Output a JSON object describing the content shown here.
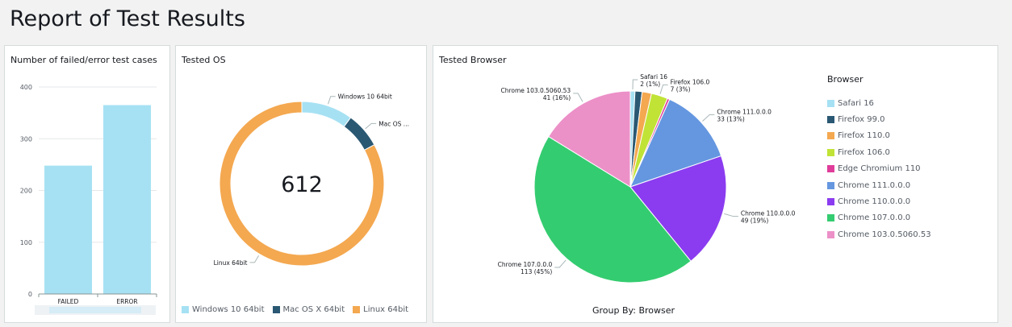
{
  "page": {
    "title": "Report of Test Results"
  },
  "colors": {
    "bar": "#a6e1f3",
    "grid": "#e4e7ea",
    "axis": "#879596"
  },
  "chart_data": [
    {
      "type": "bar",
      "title": "Number of failed/error test cases",
      "categories": [
        "FAILED",
        "ERROR"
      ],
      "values": [
        248,
        365
      ],
      "ylim": [
        0,
        400
      ],
      "yticks": [
        "0",
        "100",
        "200",
        "300",
        "400"
      ],
      "xlabel": "",
      "ylabel": "",
      "grid": true
    },
    {
      "type": "pie",
      "subtype": "donut",
      "title": "Tested OS",
      "center_value": "612",
      "slices": [
        {
          "label": "Windows 10 64bit",
          "callout": "Windows 10 64bit",
          "value": 62,
          "color": "#a6e1f3"
        },
        {
          "label": "Mac OS X 64bit",
          "callout": "Mac OS ...",
          "value": 43,
          "color": "#2a5873"
        },
        {
          "label": "Linux 64bit",
          "callout": "Linux 64bit",
          "value": 507,
          "color": "#f4a850"
        }
      ],
      "legend": "bottom"
    },
    {
      "type": "pie",
      "title": "Tested Browser",
      "legend_title": "Browser",
      "group_by": "Group By: Browser",
      "slices": [
        {
          "label": "Safari 16",
          "name": "Safari 16",
          "pct": "2 (1%)",
          "value": 2,
          "color": "#a6e1f3"
        },
        {
          "label": "Firefox 99.0",
          "name": "",
          "pct": "",
          "value": 3,
          "color": "#2a5873"
        },
        {
          "label": "Firefox 110.0",
          "name": "",
          "pct": "",
          "value": 4,
          "color": "#f4a850"
        },
        {
          "label": "Firefox 106.0",
          "name": "Firefox 106.0",
          "pct": "7 (3%)",
          "value": 7,
          "color": "#c0e336"
        },
        {
          "label": "Edge Chromium 110",
          "name": "",
          "pct": "",
          "value": 1,
          "color": "#e03d9a"
        },
        {
          "label": "Chrome 111.0.0.0",
          "name": "Chrome 111.0.0.0",
          "pct": "33 (13%)",
          "value": 33,
          "color": "#6597e0"
        },
        {
          "label": "Chrome 110.0.0.0",
          "name": "Chrome 110.0.0.0",
          "pct": "49 (19%)",
          "value": 49,
          "color": "#8b3cf0"
        },
        {
          "label": "Chrome 107.0.0.0",
          "name": "Chrome 107.0.0.0",
          "pct": "113 (45%)",
          "value": 113,
          "color": "#34cc70"
        },
        {
          "label": "Chrome 103.0.5060.53",
          "name": "Chrome 103.0.5060.53",
          "pct": "41 (16%)",
          "value": 41,
          "color": "#ec90c8"
        }
      ]
    }
  ]
}
